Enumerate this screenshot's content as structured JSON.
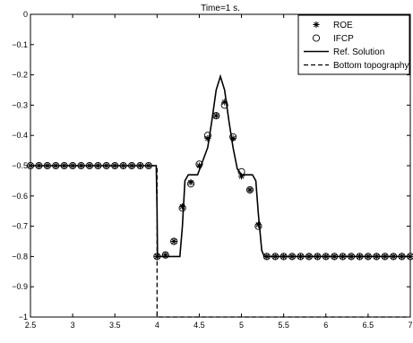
{
  "chart_data": {
    "type": "line",
    "title": "Time=1 s.",
    "xlabel": "",
    "ylabel": "",
    "xlim": [
      2.5,
      7
    ],
    "ylim": [
      -1,
      0
    ],
    "xticks": [
      "2.5",
      "3",
      "3.5",
      "4",
      "4.5",
      "5",
      "5.5",
      "6",
      "6.5",
      "7"
    ],
    "yticks": [
      "0",
      "−0.1",
      "−0.2",
      "−0.3",
      "−0.4",
      "−0.5",
      "−0.6",
      "−0.7",
      "−0.8",
      "−0.9",
      "−1"
    ],
    "grid": false,
    "legend_position": "top-right",
    "series": [
      {
        "name": "ROE",
        "style": "markers",
        "marker": "asterisk",
        "x": [
          2.5,
          2.6,
          2.7,
          2.8,
          2.9,
          3.0,
          3.1,
          3.2,
          3.3,
          3.4,
          3.5,
          3.6,
          3.7,
          3.8,
          3.9,
          4.0,
          4.1,
          4.2,
          4.3,
          4.4,
          4.5,
          4.6,
          4.7,
          4.8,
          4.9,
          5.0,
          5.1,
          5.2,
          5.3,
          5.4,
          5.5,
          5.6,
          5.7,
          5.8,
          5.9,
          6.0,
          6.1,
          6.2,
          6.3,
          6.4,
          6.5,
          6.6,
          6.7,
          6.8,
          6.9,
          7.0
        ],
        "y": [
          -0.5,
          -0.5,
          -0.5,
          -0.5,
          -0.5,
          -0.5,
          -0.5,
          -0.5,
          -0.5,
          -0.5,
          -0.5,
          -0.5,
          -0.5,
          -0.5,
          -0.5,
          -0.8,
          -0.795,
          -0.75,
          -0.635,
          -0.555,
          -0.5,
          -0.41,
          -0.335,
          -0.29,
          -0.41,
          -0.535,
          -0.58,
          -0.695,
          -0.8,
          -0.8,
          -0.8,
          -0.8,
          -0.8,
          -0.8,
          -0.8,
          -0.8,
          -0.8,
          -0.8,
          -0.8,
          -0.8,
          -0.8,
          -0.8,
          -0.8,
          -0.8,
          -0.8,
          -0.8
        ]
      },
      {
        "name": "IFCP",
        "style": "markers",
        "marker": "circle",
        "x": [
          2.5,
          2.6,
          2.7,
          2.8,
          2.9,
          3.0,
          3.1,
          3.2,
          3.3,
          3.4,
          3.5,
          3.6,
          3.7,
          3.8,
          3.9,
          4.0,
          4.1,
          4.2,
          4.3,
          4.4,
          4.5,
          4.6,
          4.7,
          4.8,
          4.9,
          5.0,
          5.1,
          5.2,
          5.3,
          5.4,
          5.5,
          5.6,
          5.7,
          5.8,
          5.9,
          6.0,
          6.1,
          6.2,
          6.3,
          6.4,
          6.5,
          6.6,
          6.7,
          6.8,
          6.9,
          7.0
        ],
        "y": [
          -0.5,
          -0.5,
          -0.5,
          -0.5,
          -0.5,
          -0.5,
          -0.5,
          -0.5,
          -0.5,
          -0.5,
          -0.5,
          -0.5,
          -0.5,
          -0.5,
          -0.5,
          -0.8,
          -0.795,
          -0.75,
          -0.64,
          -0.56,
          -0.495,
          -0.4,
          -0.335,
          -0.3,
          -0.405,
          -0.52,
          -0.58,
          -0.7,
          -0.8,
          -0.8,
          -0.8,
          -0.8,
          -0.8,
          -0.8,
          -0.8,
          -0.8,
          -0.8,
          -0.8,
          -0.8,
          -0.8,
          -0.8,
          -0.8,
          -0.8,
          -0.8,
          -0.8,
          -0.8
        ]
      },
      {
        "name": "Ref. Solution",
        "style": "solid",
        "x": [
          2.5,
          3.99,
          4.0,
          4.005,
          4.27,
          4.3,
          4.33,
          4.37,
          4.48,
          4.52,
          4.6,
          4.65,
          4.7,
          4.75,
          4.8,
          4.85,
          4.9,
          4.95,
          5.0,
          5.13,
          5.17,
          5.2,
          5.24,
          5.27,
          7.0
        ],
        "y": [
          -0.5,
          -0.5,
          -0.65,
          -0.8,
          -0.8,
          -0.7,
          -0.55,
          -0.53,
          -0.53,
          -0.5,
          -0.44,
          -0.35,
          -0.25,
          -0.205,
          -0.25,
          -0.35,
          -0.44,
          -0.51,
          -0.53,
          -0.53,
          -0.55,
          -0.66,
          -0.78,
          -0.8,
          -0.8
        ]
      },
      {
        "name": "Bottom topography",
        "style": "dashed",
        "x": [
          2.5,
          4.0,
          4.0,
          7.0
        ],
        "y": [
          -0.5,
          -0.5,
          -1.0,
          -1.0
        ]
      }
    ]
  }
}
